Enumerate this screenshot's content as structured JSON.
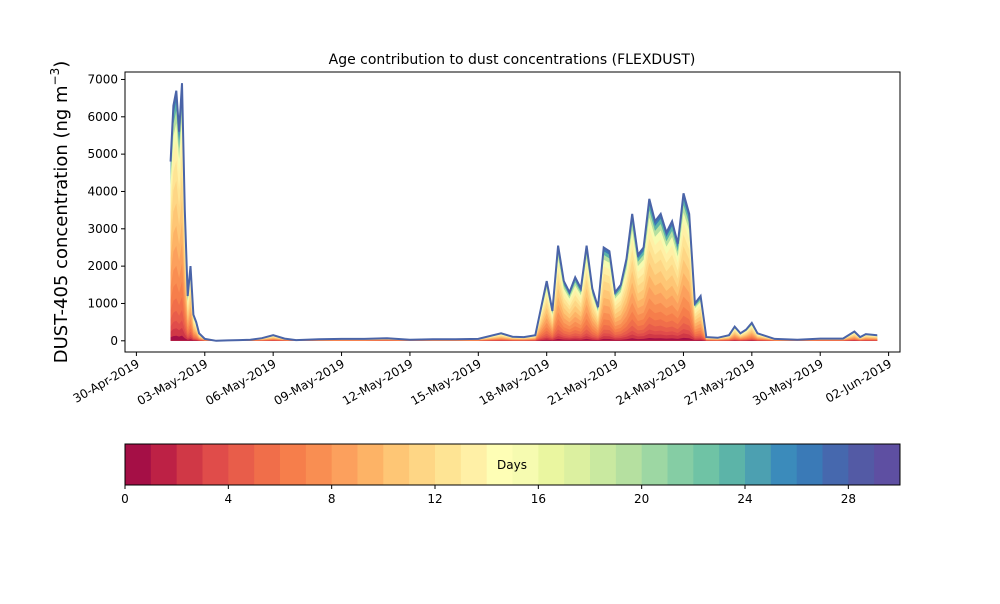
{
  "chart_data": {
    "type": "area",
    "title": "Age contribution to dust concentrations (FLEXDUST)",
    "ylabel": "DUST-405 concentration (ng m",
    "ylabel_sup": "−3",
    "ylabel_close": ")",
    "xlabel": "",
    "ylim": [
      -300,
      7200
    ],
    "xlim": [
      "2019-04-29T12:00",
      "2019-06-02T12:00"
    ],
    "yticks": [
      0,
      1000,
      2000,
      3000,
      4000,
      5000,
      6000,
      7000
    ],
    "ytick_labels": [
      "0",
      "1000",
      "2000",
      "3000",
      "4000",
      "5000",
      "6000",
      "7000"
    ],
    "xticks": [
      "2019-04-30",
      "2019-05-03",
      "2019-05-06",
      "2019-05-09",
      "2019-05-12",
      "2019-05-15",
      "2019-05-18",
      "2019-05-21",
      "2019-05-24",
      "2019-05-27",
      "2019-05-30",
      "2019-06-02"
    ],
    "xtick_labels": [
      "30-Apr-2019",
      "03-May-2019",
      "06-May-2019",
      "09-May-2019",
      "12-May-2019",
      "15-May-2019",
      "18-May-2019",
      "21-May-2019",
      "24-May-2019",
      "27-May-2019",
      "30-May-2019",
      "02-Jun-2019"
    ],
    "total_series": {
      "name": "",
      "color": "#4a64a8",
      "points": [
        [
          "2019-05-01T12:00",
          4800
        ],
        [
          "2019-05-01T15:00",
          6300
        ],
        [
          "2019-05-01T18:00",
          6700
        ],
        [
          "2019-05-01T21:00",
          5600
        ],
        [
          "2019-05-02T00:00",
          6900
        ],
        [
          "2019-05-02T03:00",
          3500
        ],
        [
          "2019-05-02T06:00",
          1200
        ],
        [
          "2019-05-02T09:00",
          2000
        ],
        [
          "2019-05-02T12:00",
          700
        ],
        [
          "2019-05-02T15:00",
          500
        ],
        [
          "2019-05-02T18:00",
          200
        ],
        [
          "2019-05-03T00:00",
          50
        ],
        [
          "2019-05-03T12:00",
          0
        ],
        [
          "2019-05-04T00:00",
          10
        ],
        [
          "2019-05-04T12:00",
          20
        ],
        [
          "2019-05-05T00:00",
          30
        ],
        [
          "2019-05-05T12:00",
          70
        ],
        [
          "2019-05-06T00:00",
          150
        ],
        [
          "2019-05-06T12:00",
          60
        ],
        [
          "2019-05-07T00:00",
          20
        ],
        [
          "2019-05-08T00:00",
          40
        ],
        [
          "2019-05-09T00:00",
          50
        ],
        [
          "2019-05-10T00:00",
          50
        ],
        [
          "2019-05-11T00:00",
          70
        ],
        [
          "2019-05-12T00:00",
          30
        ],
        [
          "2019-05-13T00:00",
          40
        ],
        [
          "2019-05-14T00:00",
          40
        ],
        [
          "2019-05-15T00:00",
          50
        ],
        [
          "2019-05-16T00:00",
          200
        ],
        [
          "2019-05-16T12:00",
          110
        ],
        [
          "2019-05-17T00:00",
          100
        ],
        [
          "2019-05-17T12:00",
          150
        ],
        [
          "2019-05-18T00:00",
          1600
        ],
        [
          "2019-05-18T06:00",
          800
        ],
        [
          "2019-05-18T12:00",
          2550
        ],
        [
          "2019-05-18T18:00",
          1600
        ],
        [
          "2019-05-19T00:00",
          1300
        ],
        [
          "2019-05-19T06:00",
          1700
        ],
        [
          "2019-05-19T12:00",
          1400
        ],
        [
          "2019-05-19T18:00",
          2550
        ],
        [
          "2019-05-20T00:00",
          1400
        ],
        [
          "2019-05-20T06:00",
          900
        ],
        [
          "2019-05-20T12:00",
          2500
        ],
        [
          "2019-05-20T18:00",
          2400
        ],
        [
          "2019-05-21T00:00",
          1300
        ],
        [
          "2019-05-21T06:00",
          1500
        ],
        [
          "2019-05-21T12:00",
          2200
        ],
        [
          "2019-05-21T18:00",
          3400
        ],
        [
          "2019-05-22T00:00",
          2300
        ],
        [
          "2019-05-22T06:00",
          2500
        ],
        [
          "2019-05-22T12:00",
          3800
        ],
        [
          "2019-05-22T18:00",
          3200
        ],
        [
          "2019-05-23T00:00",
          3400
        ],
        [
          "2019-05-23T06:00",
          2900
        ],
        [
          "2019-05-23T12:00",
          3200
        ],
        [
          "2019-05-23T18:00",
          2600
        ],
        [
          "2019-05-24T00:00",
          3950
        ],
        [
          "2019-05-24T06:00",
          3400
        ],
        [
          "2019-05-24T12:00",
          1000
        ],
        [
          "2019-05-24T18:00",
          1200
        ],
        [
          "2019-05-25T00:00",
          100
        ],
        [
          "2019-05-25T12:00",
          80
        ],
        [
          "2019-05-26T00:00",
          150
        ],
        [
          "2019-05-26T06:00",
          380
        ],
        [
          "2019-05-26T12:00",
          200
        ],
        [
          "2019-05-26T18:00",
          300
        ],
        [
          "2019-05-27T00:00",
          480
        ],
        [
          "2019-05-27T06:00",
          200
        ],
        [
          "2019-05-27T12:00",
          150
        ],
        [
          "2019-05-28T00:00",
          50
        ],
        [
          "2019-05-29T00:00",
          30
        ],
        [
          "2019-05-30T00:00",
          60
        ],
        [
          "2019-05-31T00:00",
          60
        ],
        [
          "2019-05-31T12:00",
          250
        ],
        [
          "2019-05-31T18:00",
          100
        ],
        [
          "2019-06-01T00:00",
          180
        ],
        [
          "2019-06-01T12:00",
          150
        ]
      ]
    },
    "colorbar": {
      "label": "Days",
      "range": [
        0,
        30
      ],
      "ticks": [
        0,
        4,
        8,
        12,
        16,
        20,
        24,
        28
      ],
      "tick_labels": [
        "0",
        "4",
        "8",
        "12",
        "16",
        "20",
        "24",
        "28"
      ],
      "colors": [
        "#a50f46",
        "#bd2145",
        "#d03846",
        "#e04c4a",
        "#e85d4a",
        "#f06e4a",
        "#f67e4b",
        "#f98e52",
        "#fca05d",
        "#fdb366",
        "#fec675",
        "#fed685",
        "#fee494",
        "#fff0a6",
        "#fefeb5",
        "#f6fbb0",
        "#eaf6a0",
        "#dcf0a0",
        "#c9e9a0",
        "#b5e0a0",
        "#9dd7a3",
        "#85cda4",
        "#6fc3a5",
        "#5cb4a8",
        "#4ca0b1",
        "#3b8bbb",
        "#3a7ab7",
        "#4668ae",
        "#535aa5",
        "#5e4fa2"
      ]
    }
  }
}
